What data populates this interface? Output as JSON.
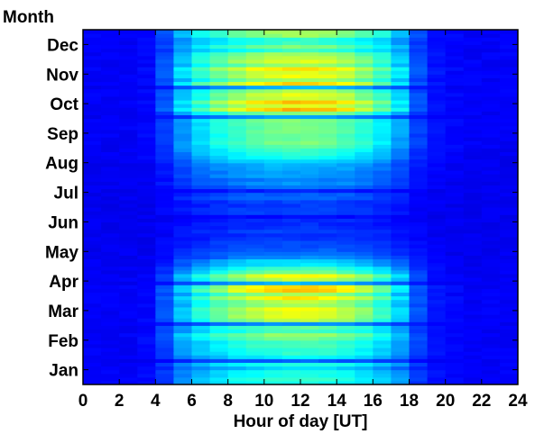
{
  "chart_data": {
    "type": "heatmap",
    "xlabel": "Hour of day [UT]",
    "ylabel": "Month",
    "x_ticks": [
      0,
      2,
      4,
      6,
      8,
      10,
      12,
      14,
      16,
      18,
      20,
      22,
      24
    ],
    "xlim": [
      0,
      24
    ],
    "months_bottom_to_top": [
      "Jan",
      "Feb",
      "Mar",
      "Apr",
      "May",
      "Jun",
      "Jul",
      "Aug",
      "Sep",
      "Oct",
      "Nov",
      "Dec"
    ],
    "colormap": "jet",
    "grid": false,
    "hours": [
      0.5,
      1.5,
      2.5,
      3.5,
      4.5,
      5.5,
      6.5,
      7.5,
      8.5,
      9.5,
      10.5,
      11.5,
      12.5,
      13.5,
      14.5,
      15.5,
      16.5,
      17.5,
      18.5,
      19.5,
      20.5,
      21.5,
      22.5,
      23.5
    ],
    "monthly_intensity": [
      {
        "month": "Jan",
        "values": [
          0.12,
          0.12,
          0.12,
          0.13,
          0.18,
          0.26,
          0.31,
          0.34,
          0.37,
          0.39,
          0.4,
          0.41,
          0.41,
          0.4,
          0.38,
          0.35,
          0.32,
          0.27,
          0.18,
          0.14,
          0.13,
          0.12,
          0.12,
          0.12
        ]
      },
      {
        "month": "Feb",
        "values": [
          0.12,
          0.12,
          0.12,
          0.13,
          0.19,
          0.29,
          0.34,
          0.38,
          0.41,
          0.43,
          0.45,
          0.46,
          0.46,
          0.45,
          0.43,
          0.4,
          0.35,
          0.29,
          0.19,
          0.14,
          0.13,
          0.12,
          0.12,
          0.12
        ]
      },
      {
        "month": "Mar",
        "values": [
          0.12,
          0.12,
          0.12,
          0.13,
          0.22,
          0.35,
          0.44,
          0.51,
          0.56,
          0.6,
          0.63,
          0.64,
          0.64,
          0.62,
          0.59,
          0.54,
          0.46,
          0.36,
          0.22,
          0.15,
          0.13,
          0.12,
          0.12,
          0.12
        ]
      },
      {
        "month": "Apr",
        "values": [
          0.12,
          0.12,
          0.12,
          0.13,
          0.2,
          0.33,
          0.43,
          0.52,
          0.59,
          0.64,
          0.67,
          0.69,
          0.69,
          0.67,
          0.63,
          0.57,
          0.49,
          0.37,
          0.21,
          0.15,
          0.13,
          0.12,
          0.12,
          0.12
        ]
      },
      {
        "month": "May",
        "values": [
          0.11,
          0.11,
          0.11,
          0.11,
          0.13,
          0.16,
          0.18,
          0.19,
          0.2,
          0.21,
          0.21,
          0.21,
          0.21,
          0.21,
          0.2,
          0.19,
          0.18,
          0.16,
          0.14,
          0.12,
          0.11,
          0.11,
          0.11,
          0.11
        ]
      },
      {
        "month": "Jun",
        "values": [
          0.11,
          0.11,
          0.11,
          0.11,
          0.12,
          0.14,
          0.15,
          0.16,
          0.17,
          0.17,
          0.18,
          0.18,
          0.18,
          0.17,
          0.17,
          0.16,
          0.15,
          0.14,
          0.12,
          0.11,
          0.11,
          0.11,
          0.11,
          0.11
        ]
      },
      {
        "month": "Jul",
        "values": [
          0.11,
          0.11,
          0.11,
          0.11,
          0.13,
          0.16,
          0.18,
          0.2,
          0.21,
          0.22,
          0.22,
          0.23,
          0.23,
          0.22,
          0.22,
          0.21,
          0.19,
          0.16,
          0.13,
          0.12,
          0.11,
          0.11,
          0.11,
          0.11
        ]
      },
      {
        "month": "Aug",
        "values": [
          0.11,
          0.11,
          0.11,
          0.12,
          0.16,
          0.22,
          0.27,
          0.3,
          0.32,
          0.34,
          0.35,
          0.35,
          0.35,
          0.34,
          0.33,
          0.3,
          0.27,
          0.22,
          0.16,
          0.13,
          0.12,
          0.11,
          0.11,
          0.11
        ]
      },
      {
        "month": "Sep",
        "values": [
          0.12,
          0.12,
          0.12,
          0.13,
          0.19,
          0.29,
          0.36,
          0.42,
          0.46,
          0.49,
          0.51,
          0.52,
          0.52,
          0.51,
          0.48,
          0.44,
          0.38,
          0.3,
          0.19,
          0.14,
          0.13,
          0.12,
          0.12,
          0.12
        ]
      },
      {
        "month": "Oct",
        "values": [
          0.12,
          0.12,
          0.12,
          0.13,
          0.22,
          0.36,
          0.46,
          0.54,
          0.6,
          0.65,
          0.68,
          0.7,
          0.7,
          0.68,
          0.64,
          0.58,
          0.49,
          0.38,
          0.22,
          0.15,
          0.13,
          0.12,
          0.12,
          0.12
        ]
      },
      {
        "month": "Nov",
        "values": [
          0.12,
          0.12,
          0.12,
          0.13,
          0.22,
          0.36,
          0.45,
          0.52,
          0.57,
          0.61,
          0.63,
          0.65,
          0.65,
          0.63,
          0.6,
          0.55,
          0.47,
          0.37,
          0.22,
          0.15,
          0.13,
          0.12,
          0.12,
          0.12
        ]
      },
      {
        "month": "Dec",
        "values": [
          0.12,
          0.12,
          0.12,
          0.13,
          0.2,
          0.31,
          0.38,
          0.43,
          0.47,
          0.5,
          0.52,
          0.53,
          0.53,
          0.52,
          0.49,
          0.45,
          0.4,
          0.32,
          0.2,
          0.14,
          0.13,
          0.12,
          0.12,
          0.12
        ]
      }
    ]
  }
}
